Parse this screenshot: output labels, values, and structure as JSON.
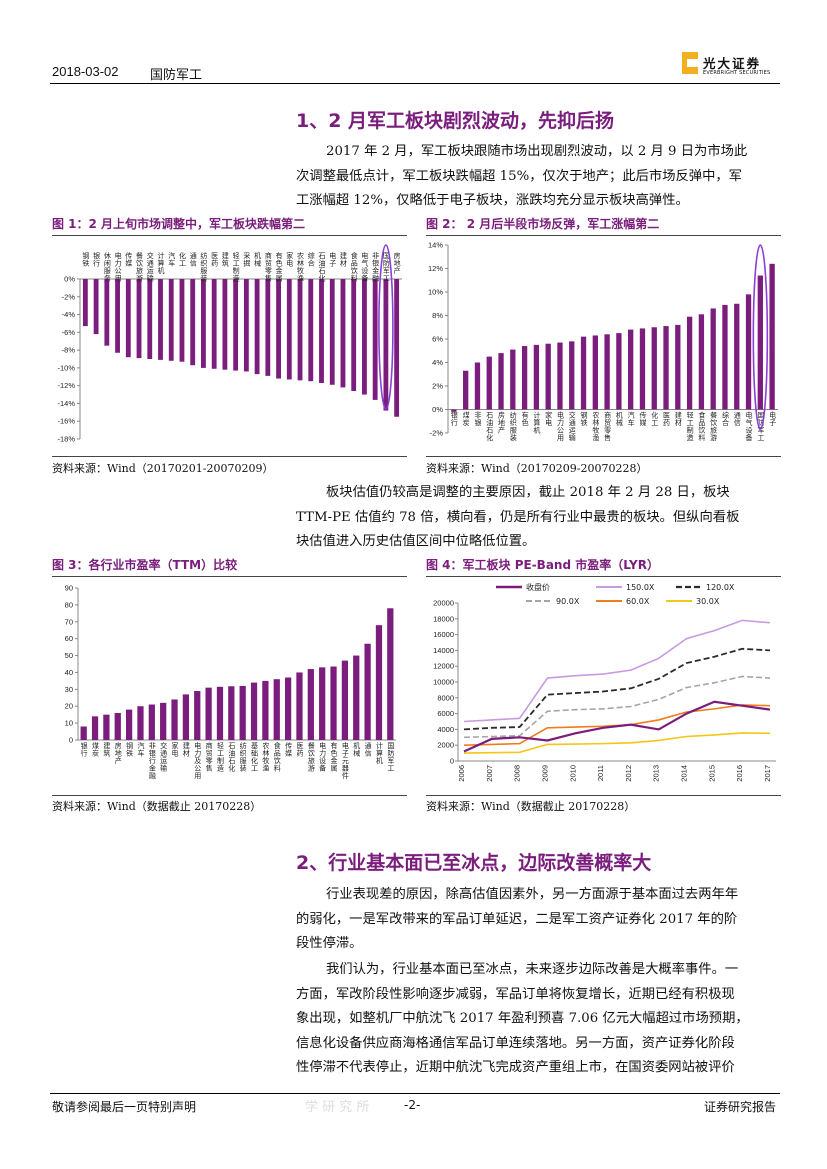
{
  "header": {
    "date": "2018-03-02",
    "sector": "国防军工",
    "logo_cn": "光大证券",
    "logo_en": "EVERBRIGHT SECURITIES"
  },
  "section1": {
    "title": "1、2 月军工板块剧烈波动，先抑后扬",
    "para1": [
      "2017 年 2 月，军工板块跟随市场出现剧烈波动，以 2 月 9 日为市场此",
      "次调整最低点计，军工板块跌幅超 15%，仅次于地产；此后市场反弹中，军",
      "工涨幅超 12%，仅略低于电子板块，涨跌均充分显示板块高弹性。"
    ],
    "para2": [
      "板块估值仍较高是调整的主要原因，截止 2018 年 2 月 28 日，板块",
      "TTM-PE 估值约 78 倍，横向看，仍是所有行业中最贵的板块。但纵向看板",
      "块估值进入历史估值区间中位略低位置。"
    ]
  },
  "figures": {
    "fig1": {
      "title": "图 1：2 月上旬市场调整中，军工板块跌幅第二",
      "source": "资料来源：Wind（20170201-20070209）"
    },
    "fig2": {
      "title": "图 2： 2 月后半段市场反弹，军工涨幅第二",
      "source": "资料来源：Wind（20170209-20070228）"
    },
    "fig3": {
      "title": "图 3：各行业市盈率（TTM）比较",
      "source": "资料来源：Wind（数据截止 20170228）"
    },
    "fig4": {
      "title": "图 4：军工板块 PE-Band 市盈率（LYR）",
      "source": "资料来源：Wind（数据截止 20170228）"
    }
  },
  "section2": {
    "title": "2、行业基本面已至冰点，边际改善概率大",
    "para1": [
      "行业表现差的原因，除高估值因素外，另一方面源于基本面过去两年年",
      "的弱化，一是军改带来的军品订单延迟，二是军工资产证券化 2017 年的阶",
      "段性停滞。"
    ],
    "para2": [
      "我们认为，行业基本面已至冰点，未来逐步边际改善是大概率事件。一",
      "方面，军改阶段性影响逐步减弱，军品订单将恢复增长，近期已经有积极现",
      "象出现，如整机厂中航沈飞 2017 年盈利预喜 7.06 亿元大幅超过市场预期，",
      "信息化设备供应商海格通信军品订单连续落地。另一方面，资产证券化阶段",
      "性停滞不代表停止，近期中航沈飞完成资产重组上市，在国资委网站被评价"
    ]
  },
  "footer": {
    "left": "敬请参阅最后一页特别声明",
    "page": "-2-",
    "right": "证券研究报告",
    "watermark": "学 研 究 所"
  },
  "colors": {
    "purple": "#7a1d7c",
    "accent_line": "#8b3fd6",
    "band150": "#c79be0",
    "band120": "#2b2b2b",
    "band90": "#a5a5a5",
    "band60": "#f07d1a",
    "band30": "#f5c518"
  },
  "chart_data": [
    {
      "id": "fig1",
      "type": "bar",
      "title": "图 1：2 月上旬市场调整中，军工板块跌幅第二",
      "categories": [
        "钢铁",
        "银行",
        "休闲服务",
        "电力公用",
        "传媒",
        "餐饮旅游",
        "交通运输",
        "计算机",
        "汽车",
        "化工",
        "通信",
        "纺织服装",
        "医药",
        "建筑",
        "轻工制造",
        "采掘",
        "机械",
        "商贸零售",
        "有色金属",
        "家电",
        "农林牧渔",
        "综合",
        "石油石化",
        "电子",
        "建材",
        "食品饮料",
        "电气设备",
        "非银金融",
        "国防军工",
        "房地产"
      ],
      "values": [
        -5.3,
        -6.2,
        -7.5,
        -8.3,
        -8.8,
        -8.9,
        -9.0,
        -9.1,
        -9.2,
        -9.3,
        -9.7,
        -10.0,
        -10.1,
        -10.2,
        -10.3,
        -10.4,
        -10.7,
        -10.9,
        -11.2,
        -11.3,
        -11.4,
        -11.5,
        -11.7,
        -11.9,
        -12.2,
        -12.6,
        -13.0,
        -13.6,
        -14.8,
        -15.5
      ],
      "ylim": [
        -18,
        0
      ],
      "highlight": "国防军工"
    },
    {
      "id": "fig2",
      "type": "bar",
      "title": "图 2： 2 月后半段市场反弹，军工涨幅第二",
      "categories": [
        "银行",
        "煤炭",
        "非银",
        "石油石化",
        "房地产",
        "纺织服装",
        "有色",
        "计算机",
        "家电",
        "电力公用",
        "交通运输",
        "钢铁",
        "农林牧渔",
        "商贸零售",
        "机械",
        "汽车",
        "传媒",
        "化工",
        "医药",
        "建材",
        "轻工制造",
        "食品饮料",
        "餐饮旅游",
        "综合",
        "通信",
        "电气设备",
        "国防军工",
        "电子"
      ],
      "values": [
        -0.2,
        3.3,
        4.0,
        4.5,
        4.8,
        5.1,
        5.4,
        5.5,
        5.6,
        5.7,
        5.8,
        6.2,
        6.3,
        6.4,
        6.5,
        6.8,
        6.9,
        7.0,
        7.1,
        7.2,
        7.9,
        8.1,
        8.6,
        8.9,
        9.0,
        9.8,
        11.4,
        12.4
      ],
      "ylim": [
        -2,
        14
      ],
      "highlight": "国防军工"
    },
    {
      "id": "fig3",
      "type": "bar",
      "title": "图 3：各行业市盈率（TTM）比较",
      "categories": [
        "银行",
        "煤炭",
        "建筑",
        "房地产",
        "钢铁",
        "汽车",
        "非银行金融",
        "交通运输",
        "家电",
        "建材",
        "电力及公用",
        "商贸零售",
        "轻工制造",
        "石油石化",
        "纺织服装",
        "基础化工",
        "农林牧渔",
        "食品饮料",
        "传媒",
        "医药",
        "餐饮旅游",
        "电力设备",
        "有色金属",
        "电子元器件",
        "机械",
        "通信",
        "计算机",
        "国防军工"
      ],
      "values": [
        8,
        14,
        15,
        16,
        18,
        20,
        21,
        22,
        24,
        27,
        29,
        31,
        31.5,
        31.8,
        32,
        34,
        35,
        36,
        37,
        40,
        42,
        43,
        43.5,
        47,
        50,
        57,
        68,
        78
      ],
      "ylim": [
        0,
        90
      ]
    },
    {
      "id": "fig4",
      "type": "line",
      "title": "图 4：军工板块 PE-Band 市盈率（LYR）",
      "x": [
        "2006",
        "2007",
        "2008",
        "2009",
        "2010",
        "2011",
        "2012",
        "2013",
        "2014",
        "2015",
        "2016",
        "2017"
      ],
      "legend": [
        "收盘价",
        "150.0X",
        "120.0X",
        "90.0X",
        "60.0X",
        "30.0X"
      ],
      "ylim": [
        0,
        20000
      ],
      "series": [
        {
          "name": "收盘价",
          "values": [
            1200,
            2800,
            3000,
            2600,
            3500,
            4200,
            4600,
            4000,
            6000,
            7500,
            7000,
            6500
          ]
        },
        {
          "name": "150.0X",
          "values": [
            5000,
            5200,
            5400,
            10500,
            10800,
            11000,
            11500,
            13000,
            15500,
            16500,
            17800,
            17500
          ]
        },
        {
          "name": "120.0X",
          "values": [
            4000,
            4200,
            4300,
            8400,
            8600,
            8800,
            9200,
            10400,
            12400,
            13200,
            14200,
            14000
          ]
        },
        {
          "name": "90.0X",
          "values": [
            3000,
            3100,
            3200,
            6300,
            6500,
            6600,
            6900,
            7800,
            9300,
            9900,
            10700,
            10500
          ]
        },
        {
          "name": "60.0X",
          "values": [
            2000,
            2100,
            2200,
            4200,
            4300,
            4400,
            4600,
            5200,
            6200,
            6600,
            7100,
            7000
          ]
        },
        {
          "name": "30.0X",
          "values": [
            1000,
            1050,
            1100,
            2100,
            2150,
            2200,
            2300,
            2600,
            3100,
            3300,
            3550,
            3500
          ]
        }
      ]
    }
  ]
}
